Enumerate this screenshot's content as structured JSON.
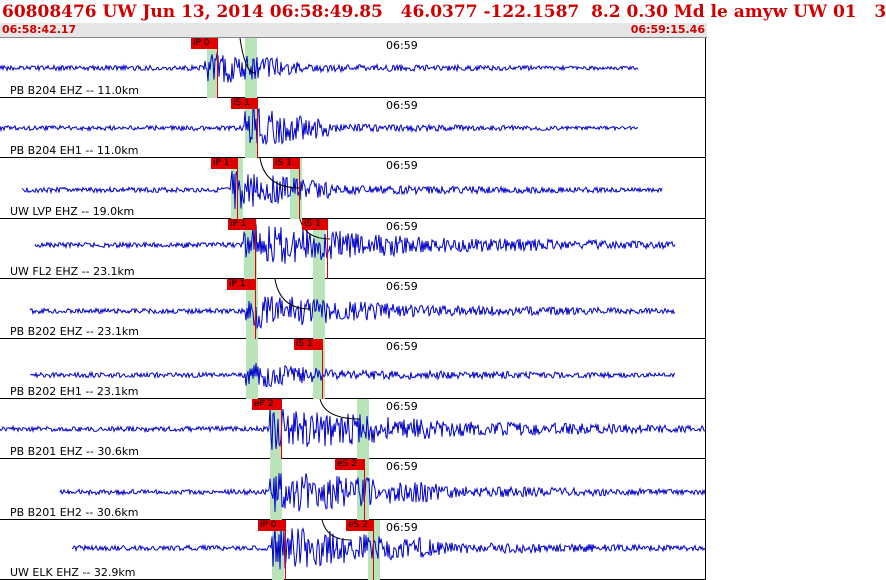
{
  "header": {
    "title": "60808476 UW Jun 13, 2014 06:58:49.85   46.0377 -122.1587  8.2 0.30 Md le amyw UW 01   3",
    "start_time": "06:58:42.17",
    "end_time": "06:59:15.46"
  },
  "colors": {
    "trace": "#0000cc",
    "pick": "#e00000",
    "window": "#b9e3b9",
    "text": "#d00000"
  },
  "panels": [
    {
      "label": "PB B204 EHZ -- 11.0km",
      "time": "06:59",
      "picks": [
        {
          "text": "iP 0"
        }
      ]
    },
    {
      "label": "PB B204 EH1 -- 11.0km",
      "time": "06:59",
      "picks": [
        {
          "text": "iS 1"
        }
      ]
    },
    {
      "label": "UW LVP EHZ -- 19.0km",
      "time": "06:59",
      "picks": [
        {
          "text": "iP 1"
        },
        {
          "text": "iS 1"
        }
      ]
    },
    {
      "label": "UW FL2 EHZ -- 23.1km",
      "time": "06:59",
      "picks": [
        {
          "text": "iP 1"
        },
        {
          "text": "iS 1"
        }
      ]
    },
    {
      "label": "PB B202 EHZ -- 23.1km",
      "time": "06:59",
      "picks": [
        {
          "text": "iP 1"
        }
      ]
    },
    {
      "label": "PB B202 EH1 -- 23.1km",
      "time": "06:59",
      "picks": [
        {
          "text": "iS 1"
        }
      ]
    },
    {
      "label": "PB B201 EHZ -- 30.6km",
      "time": "06:59",
      "picks": [
        {
          "text": "eP 2"
        }
      ]
    },
    {
      "label": "PB B201 EH2 -- 30.6km",
      "time": "06:59",
      "picks": [
        {
          "text": "eS 2"
        }
      ]
    },
    {
      "label": "UW ELK EHZ -- 32.9km",
      "time": "06:59",
      "picks": [
        {
          "text": "iP 0"
        },
        {
          "text": "eS 2"
        }
      ]
    }
  ]
}
